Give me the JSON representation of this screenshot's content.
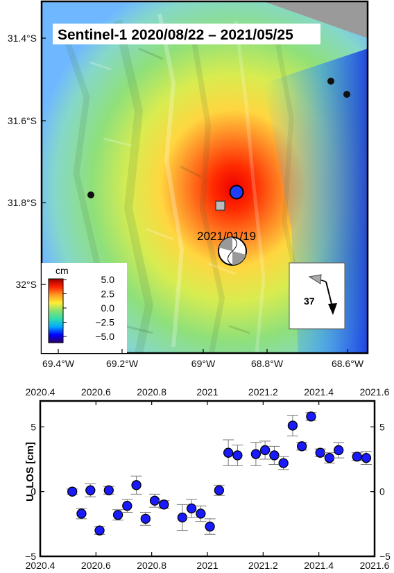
{
  "map": {
    "title": "Sentinel-1 2020/08/22 – 2021/05/25",
    "event_label": "2021/01/19",
    "heading_label": "37",
    "lat_ticks": [
      "31.4°S",
      "31.6°S",
      "31.8°S",
      "32°S"
    ],
    "lon_ticks": [
      "69.4°W",
      "69.2°W",
      "69°W",
      "68.8°W",
      "68.6°W"
    ],
    "colorbar": {
      "unit": "cm",
      "ticks": [
        "5.0",
        "2.5",
        "0.0",
        "−2.5",
        "−5.0"
      ],
      "colors": [
        "#2a0066",
        "#0000ff",
        "#00aaff",
        "#33ddaa",
        "#88e070",
        "#ffee33",
        "#ff9922",
        "#ff2200",
        "#990000"
      ]
    },
    "colors": {
      "epicenter": "#1f3fff",
      "station": "#111111",
      "square": "#bbbbbb"
    }
  },
  "chart_data": {
    "type": "scatter",
    "title": "",
    "ylabel": "U_LOS [cm]",
    "xlim": [
      2020.4,
      2021.6
    ],
    "ylim": [
      -5,
      7
    ],
    "x_ticks": [
      "2020.4",
      "2020.6",
      "2020.8",
      "2021",
      "2021.2",
      "2021.4",
      "2021.6"
    ],
    "top_x_ticks": [
      "2020.4",
      "2020.6",
      "2020.8",
      "2021",
      "2021.2",
      "2021.4",
      "2021.6"
    ],
    "y_ticks": [
      "−5",
      "0",
      "5"
    ],
    "right_y_ticks": [
      "−5",
      "0",
      "5"
    ],
    "marker_color": "#1a1aff",
    "points": [
      {
        "x": 2020.515,
        "y": 0.0,
        "err": 0.2
      },
      {
        "x": 2020.548,
        "y": -1.7,
        "err": 0.4
      },
      {
        "x": 2020.58,
        "y": 0.1,
        "err": 0.5
      },
      {
        "x": 2020.613,
        "y": -3.0,
        "err": 0.3
      },
      {
        "x": 2020.646,
        "y": 0.1,
        "err": 0.3
      },
      {
        "x": 2020.679,
        "y": -1.8,
        "err": 0.4
      },
      {
        "x": 2020.712,
        "y": -1.1,
        "err": 0.5
      },
      {
        "x": 2020.745,
        "y": 0.5,
        "err": 0.7
      },
      {
        "x": 2020.778,
        "y": -2.1,
        "err": 0.5
      },
      {
        "x": 2020.811,
        "y": -0.7,
        "err": 0.5
      },
      {
        "x": 2020.844,
        "y": -1.0,
        "err": 0.3
      },
      {
        "x": 2020.91,
        "y": -2.0,
        "err": 1.0
      },
      {
        "x": 2020.943,
        "y": -1.3,
        "err": 0.7
      },
      {
        "x": 2020.976,
        "y": -1.7,
        "err": 0.6
      },
      {
        "x": 2021.009,
        "y": -2.7,
        "err": 0.6
      },
      {
        "x": 2021.042,
        "y": 0.1,
        "err": 0.4
      },
      {
        "x": 2021.075,
        "y": 3.0,
        "err": 1.0
      },
      {
        "x": 2021.108,
        "y": 2.8,
        "err": 0.8
      },
      {
        "x": 2021.174,
        "y": 2.9,
        "err": 0.9
      },
      {
        "x": 2021.207,
        "y": 3.2,
        "err": 0.7
      },
      {
        "x": 2021.24,
        "y": 2.8,
        "err": 0.7
      },
      {
        "x": 2021.273,
        "y": 2.2,
        "err": 0.5
      },
      {
        "x": 2021.306,
        "y": 5.1,
        "err": 0.8
      },
      {
        "x": 2021.339,
        "y": 3.5,
        "err": 0.3
      },
      {
        "x": 2021.372,
        "y": 5.8,
        "err": 0.3
      },
      {
        "x": 2021.405,
        "y": 3.0,
        "err": 0.3
      },
      {
        "x": 2021.438,
        "y": 2.6,
        "err": 0.4
      },
      {
        "x": 2021.471,
        "y": 3.2,
        "err": 0.6
      },
      {
        "x": 2021.537,
        "y": 2.7,
        "err": 0.3
      },
      {
        "x": 2021.57,
        "y": 2.6,
        "err": 0.5
      }
    ]
  }
}
